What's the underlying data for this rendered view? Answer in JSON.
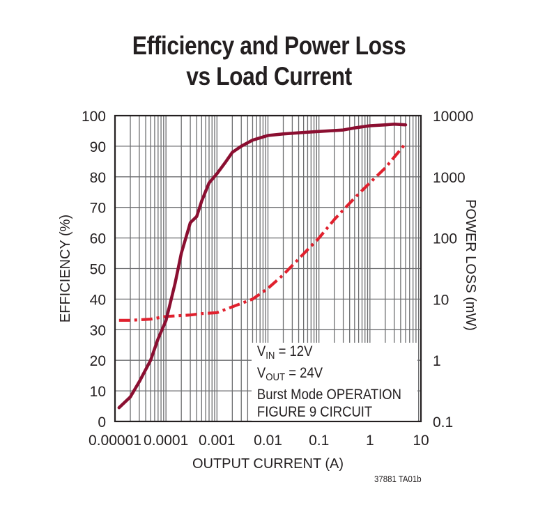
{
  "title_line1": "Efficiency and Power Loss",
  "title_line2": "vs Load Current",
  "footer_code": "37881 TA01b",
  "legend": {
    "vin_label": "V",
    "vin_sub": "IN",
    "vin_value": " = 12V",
    "vout_label": "V",
    "vout_sub": "OUT",
    "vout_value": " = 24V",
    "mode": "Burst Mode OPERATION",
    "circuit": "FIGURE 9 CIRCUIT"
  },
  "colors": {
    "efficiency": "#8b0f31",
    "power_loss": "#e0212e",
    "grid": "#6d6e70",
    "frame": "#231f20"
  },
  "chart_data": {
    "type": "line",
    "title": "Efficiency and Power Loss vs Load Current",
    "xlabel": "OUTPUT CURRENT (A)",
    "ylabel": "EFFICIENCY (%)",
    "ylabel_right": "POWER LOSS (mW)",
    "xscale": "log",
    "xlim": [
      1e-05,
      10
    ],
    "ylim": [
      0,
      100
    ],
    "ylim_right": [
      0.1,
      10000
    ],
    "yscale_right": "log",
    "grid": true,
    "x_tick_labels": [
      "0.00001",
      "0.0001",
      "0.001",
      "0.01",
      "0.1",
      "1",
      "10"
    ],
    "y_tick_labels": [
      "0",
      "10",
      "20",
      "30",
      "40",
      "50",
      "60",
      "70",
      "80",
      "90",
      "100"
    ],
    "y_right_tick_labels": [
      "0.1",
      "1",
      "10",
      "100",
      "1000",
      "10000"
    ],
    "series": [
      {
        "name": "Efficiency",
        "axis": "left",
        "style": "solid",
        "x": [
          1.2e-05,
          2e-05,
          3e-05,
          5e-05,
          7e-05,
          0.0001,
          0.00015,
          0.0002,
          0.0003,
          0.0004,
          0.0005,
          0.0007,
          0.001,
          0.0015,
          0.002,
          0.003,
          0.005,
          0.01,
          0.02,
          0.05,
          0.1,
          0.3,
          0.5,
          1,
          2,
          3,
          5
        ],
        "values": [
          4.5,
          8,
          13,
          20,
          27,
          33,
          45,
          55,
          65,
          67,
          72,
          78,
          81,
          85,
          88,
          90,
          92,
          93.5,
          94,
          94.5,
          94.8,
          95.3,
          96,
          96.7,
          97,
          97.2,
          97
        ]
      },
      {
        "name": "Power Loss",
        "axis": "right",
        "style": "dash-dot",
        "x": [
          1.2e-05,
          2e-05,
          5e-05,
          0.0001,
          0.0003,
          0.0005,
          0.001,
          0.002,
          0.005,
          0.01,
          0.02,
          0.05,
          0.1,
          0.2,
          0.5,
          1,
          2,
          5
        ],
        "values_mW": [
          4.5,
          4.5,
          4.7,
          5.2,
          5.5,
          5.8,
          6,
          7.5,
          10,
          15,
          25,
          55,
          100,
          200,
          450,
          800,
          1400,
          3500
        ]
      }
    ]
  }
}
